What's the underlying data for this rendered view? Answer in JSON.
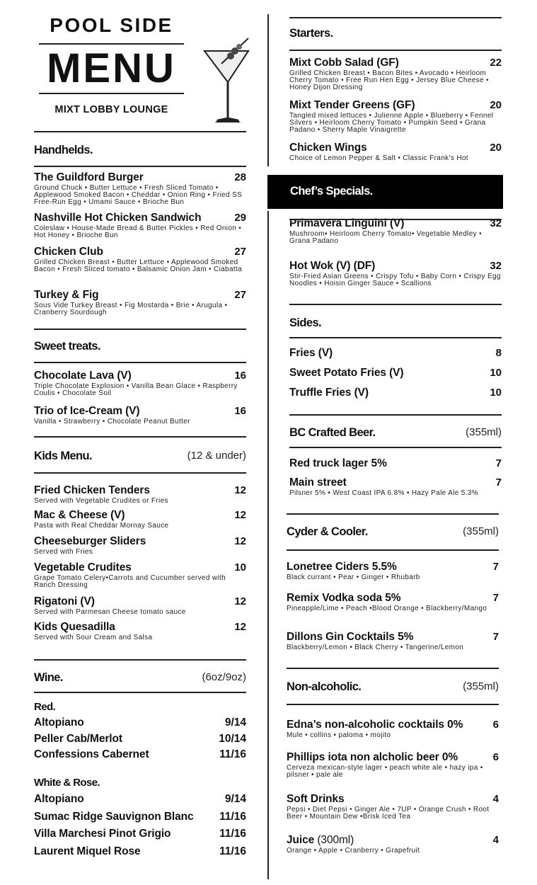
{
  "header": {
    "title_top": "POOL SIDE",
    "title_main": "MENU",
    "subtitle": "MIXT LOBBY LOUNGE",
    "icon": "martini-glass-icon"
  },
  "sections": {
    "handhelds": {
      "title": "Handhelds.",
      "items": [
        {
          "name": "The Guildford Burger",
          "price": "28",
          "desc": "Ground Chuck • Butter Lettuce • Fresh Sliced Tomato • Applewood Smoked Bacon • Cheddar • Onion Ring • Fried SS Free-Run Egg • Umami Sauce • Brioche Bun"
        },
        {
          "name": "Nashville Hot Chicken Sandwich",
          "price": "29",
          "desc": "Coleslaw • House-Made Bread & Butter Pickles • Red Onion • Hot Honey • Brioche Bun"
        },
        {
          "name": "Chicken Club",
          "price": "27",
          "desc": "Grilled Chicken Breast • Butter Lettuce • Applewood Smoked Bacon • Fresh Sliced tomato • Balsamic Onion Jam • Ciabatta"
        },
        {
          "name": "Turkey & Fig",
          "price": "27",
          "desc": "Sous Vide Turkey Breast • Fig Mostarda • Brie • Arugula • Cranberry Sourdough"
        }
      ]
    },
    "sweet": {
      "title": "Sweet treats.",
      "items": [
        {
          "name": "Chocolate Lava (V)",
          "price": "16",
          "desc": "Triple Chocolate Explosion • Vanilla Bean Glace • Raspberry Coulis • Chocolate Soil"
        },
        {
          "name": "Trio of Ice-Cream (V)",
          "price": "16",
          "desc": "Vanilla • Strawberry • Chocolate Peanut Butter"
        }
      ]
    },
    "kids": {
      "title": "Kids Menu.",
      "note": "(12 & under)",
      "items": [
        {
          "name": "Fried Chicken Tenders",
          "price": "12",
          "desc": "Served with Vegetable Crudites or Fries"
        },
        {
          "name": "Mac & Cheese (V)",
          "price": "12",
          "desc": "Pasta with Real Cheddar Mornay Sauce"
        },
        {
          "name": "Cheeseburger Sliders",
          "price": "12",
          "desc": "Served with Fries"
        },
        {
          "name": "Vegetable Crudites",
          "price": "10",
          "desc": "Grape Tomato Celery•Carrots and Cucumber served with Ranch Dressing"
        },
        {
          "name": "Rigatoni (V)",
          "price": "12",
          "desc": "Served with Parmesan Cheese tomato sauce"
        },
        {
          "name": "Kids Quesadilla",
          "price": "12",
          "desc": "Served with Sour Cream and Salsa"
        }
      ]
    },
    "wine": {
      "title": "Wine.",
      "note": "(6oz/9oz)",
      "red_title": "Red.",
      "white_title": "White & Rose.",
      "red": [
        {
          "name": "Altopiano",
          "price": "9/14"
        },
        {
          "name": "Peller Cab/Merlot",
          "price": "10/14"
        },
        {
          "name": "Confessions Cabernet",
          "price": "11/16"
        }
      ],
      "white": [
        {
          "name": "Altopiano",
          "price": "9/14"
        },
        {
          "name": "Sumac Ridge Sauvignon Blanc",
          "price": "11/16"
        },
        {
          "name": "Villa Marchesi Pinot Grigio",
          "price": "11/16"
        },
        {
          "name": "Laurent Miquel Rose",
          "price": "11/16"
        }
      ]
    },
    "starters": {
      "title": "Starters.",
      "items": [
        {
          "name": "Mixt Cobb Salad (GF)",
          "price": "22",
          "desc": "Grilled Chicken Breast • Bacon Bites • Avocado • Heirloom Cherry Tomato • Free Run Hen Egg • Jersey Blue Cheese • Honey Dijon Dressing"
        },
        {
          "name": "Mixt Tender Greens (GF)",
          "price": "20",
          "desc": "Tangled mixed lettuces • Julienne Apple • Blueberry • Fennel Silvers • Heirloom Cherry Tomato • Pumpkin Seed • Grana Padano • Sherry Maple Vinaigrette"
        },
        {
          "name": "Chicken Wings",
          "price": "20",
          "desc": "Choice of Lemon Pepper & Salt • Classic Frank’s Hot"
        }
      ]
    },
    "chef": {
      "title": "Chef’s Specials.",
      "items": [
        {
          "name": "Primavera Linguini (V)",
          "price": "32",
          "desc": "Mushroom• Heirloom Cherry Tomato• Vegetable Medley • Grana Padano"
        },
        {
          "name": "Hot Wok (V) (DF)",
          "price": "32",
          "desc": "Stir-Fried Asian Greens • Crispy Tofu • Baby Corn • Crispy Egg Noodles • Hoisin Ginger Sauce • Scallions"
        }
      ]
    },
    "sides": {
      "title": "Sides.",
      "items": [
        {
          "name": "Fries (V)",
          "price": "8"
        },
        {
          "name": "Sweet Potato Fries (V)",
          "price": "10"
        },
        {
          "name": "Truffle Fries (V)",
          "price": "10"
        }
      ]
    },
    "beer": {
      "title": "BC Crafted Beer.",
      "note": "(355ml)",
      "items": [
        {
          "name": "Red truck lager 5%",
          "price": "7"
        },
        {
          "name": "Main street",
          "price": "7",
          "desc": "Pilsner 5% • West Coast IPA 6.8% • Hazy Pale Ale 5.3%"
        }
      ]
    },
    "cyder": {
      "title": "Cyder & Cooler.",
      "note": "(355ml)",
      "items": [
        {
          "name": "Lonetree Ciders 5.5%",
          "price": "7",
          "desc": "Black currant • Pear • Ginger • Rhubarb"
        },
        {
          "name": "Remix Vodka soda 5%",
          "price": "7",
          "desc": "Pineapple/Lime • Peach •Blood Orange • Blackberry/Mango"
        },
        {
          "name": "Dillons Gin Cocktails 5%",
          "price": "7",
          "desc": "Blackberry/Lemon • Black Cherry • Tangerine/Lemon"
        }
      ]
    },
    "nonalc": {
      "title": "Non-alcoholic.",
      "note": "(355ml)",
      "items": [
        {
          "name": "Edna’s non-alcoholic cocktails 0%",
          "price": "6",
          "desc": "Mule • collins • paloma • mojito"
        },
        {
          "name": "Phillips iota non alcholic beer 0%",
          "price": "6",
          "desc": "Cerveza mexican-style lager • peach white ale • hazy ipa • pilsner • pale ale"
        },
        {
          "name": "Soft Drinks",
          "price": "4",
          "desc": "Pepsi • Diet Pepsi • Ginger Ale • 7UP • Orange Crush • Root Beer • Mountain Dew •Brisk Iced Tea"
        },
        {
          "name": "Juice",
          "note": "(300ml)",
          "price": "4",
          "desc": "Orange • Apple • Cranberry • Grapefruit"
        }
      ]
    }
  }
}
